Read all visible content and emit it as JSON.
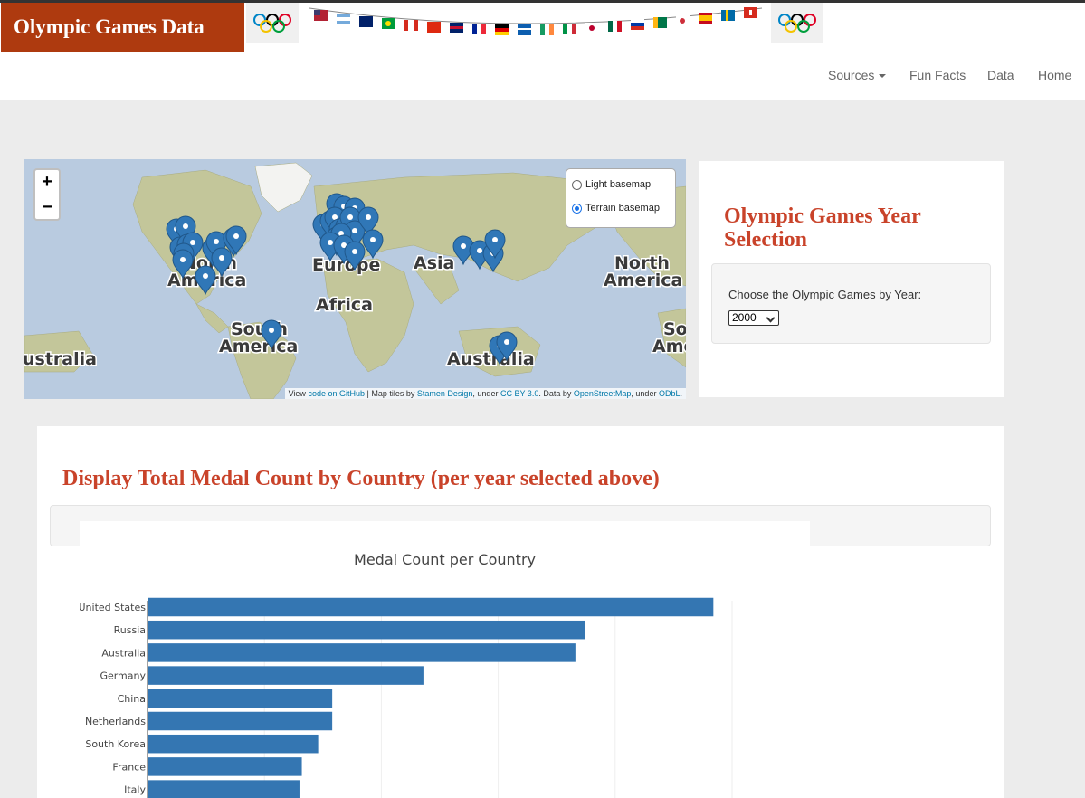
{
  "header": {
    "brand": "Olympic Games Data",
    "nav": [
      {
        "label": "Sources",
        "dropdown": true
      },
      {
        "label": "Fun Facts"
      },
      {
        "label": "Data"
      },
      {
        "label": "Home"
      }
    ]
  },
  "map": {
    "zoom_in": "+",
    "zoom_out": "−",
    "layers": [
      {
        "label": "Light basemap",
        "checked": false
      },
      {
        "label": "Terrain basemap",
        "checked": true
      }
    ],
    "labels": {
      "north_america": [
        "North",
        "America"
      ],
      "south_america": [
        "South",
        "America"
      ],
      "europe": "Europe",
      "africa": "Africa",
      "asia": "Asia",
      "australia": "Australia",
      "north_america_right": [
        "North",
        "America"
      ],
      "south_america_right": [
        "South",
        "America"
      ],
      "australia_left": "ustralia"
    },
    "attribution": {
      "view": "View",
      "code_link": "code on GitHub",
      "tiles_by": "| Map tiles by",
      "stamen_link": "Stamen Design",
      "under": ", under",
      "cc_link": "CC BY 3.0",
      "data_by": ". Data by",
      "osm_link": "OpenStreetMap",
      "under2": ", under",
      "odbl_link": "ODbL",
      "end": "."
    }
  },
  "selection": {
    "title": "Olympic Games Year Selection",
    "label": "Choose the Olympic Games by Year:",
    "selected_year": "2000"
  },
  "medals": {
    "heading": "Display Total Medal Count by Country (per year selected above)"
  },
  "colors": {
    "brand": "#ae3a0f",
    "heading": "#c9432a",
    "bar": "#3476b2"
  },
  "chart_data": {
    "type": "bar",
    "orientation": "horizontal",
    "title": "Medal Count per Country",
    "categories": [
      "United States",
      "Russia",
      "Australia",
      "Germany",
      "China",
      "Netherlands",
      "South Korea",
      "France",
      "Italy"
    ],
    "values": [
      242,
      187,
      183,
      118,
      79,
      79,
      73,
      66,
      65
    ],
    "xlim": [
      0,
      250
    ],
    "grid": true
  }
}
